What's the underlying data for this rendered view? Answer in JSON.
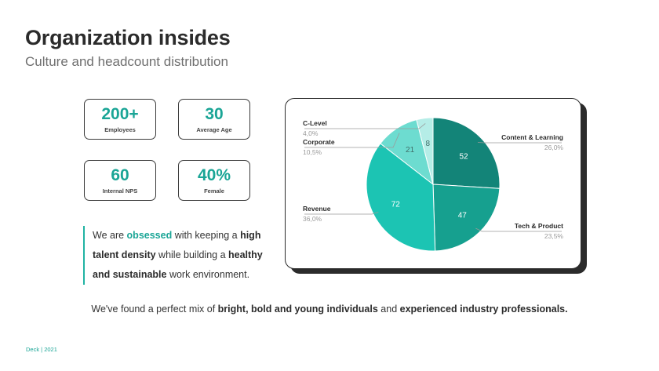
{
  "header": {
    "title": "Organization insides",
    "subtitle": "Culture and headcount distribution"
  },
  "stats": [
    {
      "value": "200+",
      "label": "Employees"
    },
    {
      "value": "30",
      "label": "Average Age"
    },
    {
      "value": "60",
      "label": "Internal NPS"
    },
    {
      "value": "40%",
      "label": "Female"
    }
  ],
  "quote": {
    "p1": "We are ",
    "p2": "obsessed",
    "p3": " with keeping a ",
    "p4": "high talent density",
    "p5": " while building a ",
    "p6": "healthy and sustainable",
    "p7": " work environment."
  },
  "footer": {
    "p1": "We've found a perfect mix of ",
    "p2": "bright, bold and young individuals",
    "p3": " and ",
    "p4": "experienced industry professionals.",
    "deck": "Deck | 2021"
  },
  "colors": {
    "accent": "#1aa596",
    "slices": [
      "#138478",
      "#16a08f",
      "#1cc4b3",
      "#6ddcd0",
      "#b5ede7"
    ]
  },
  "chart_data": {
    "type": "pie",
    "start_angle_deg": 0,
    "slices": [
      {
        "label": "Content & Learning",
        "value": 52,
        "percent": "26,0%"
      },
      {
        "label": "Tech & Product",
        "value": 47,
        "percent": "23,5%"
      },
      {
        "label": "Revenue",
        "value": 72,
        "percent": "36,0%"
      },
      {
        "label": "Corporate",
        "value": 21,
        "percent": "10,5%"
      },
      {
        "label": "C-Level",
        "value": 8,
        "percent": "4,0%"
      }
    ]
  }
}
